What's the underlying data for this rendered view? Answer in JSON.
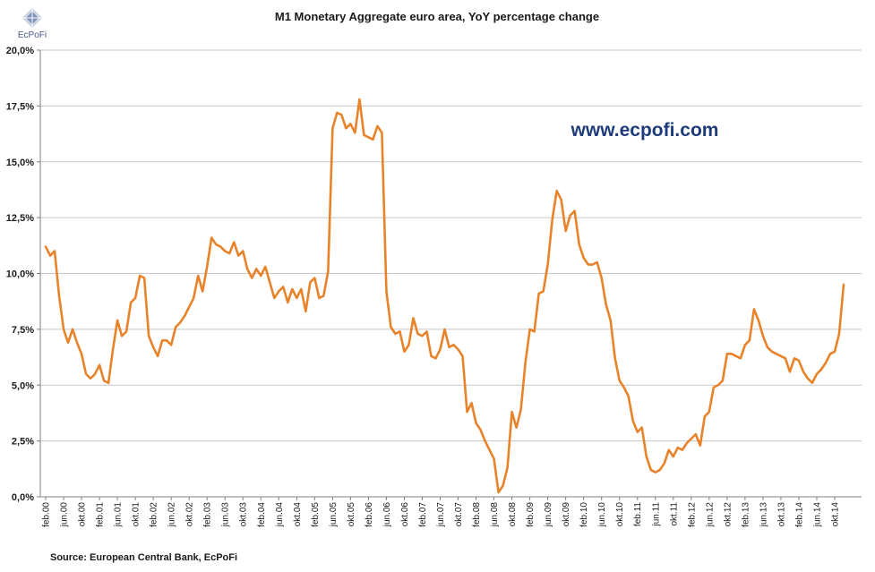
{
  "brand": {
    "name": "EcPoFi",
    "color": "#3b5b9b"
  },
  "website": {
    "text": "www.ecpofi.com",
    "color": "#1f3c7a"
  },
  "source": "Source: European Central Bank, EcPoFi",
  "chart_data": {
    "type": "line",
    "title": "M1 Monetary Aggregate euro area, YoY percentage change",
    "xlabel": "",
    "ylabel": "",
    "ylim": [
      0,
      20
    ],
    "y_ticks": [
      "0,0%",
      "2,5%",
      "5,0%",
      "7,5%",
      "10,0%",
      "12,5%",
      "15,0%",
      "17,5%",
      "20,0%"
    ],
    "y_tick_values": [
      0,
      2.5,
      5,
      7.5,
      10,
      12.5,
      15,
      17.5,
      20
    ],
    "x_ticks": [
      "feb.00",
      "jun.00",
      "okt.00",
      "feb.01",
      "jun.01",
      "okt.01",
      "feb.02",
      "jun.02",
      "okt.02",
      "feb.03",
      "jun.03",
      "okt.03",
      "feb.04",
      "jun.04",
      "okt.04",
      "feb.05",
      "jun.05",
      "okt.05",
      "feb.06",
      "jun.06",
      "okt.06",
      "feb.07",
      "jun.07",
      "okt.07",
      "feb.08",
      "jun.08",
      "okt.08",
      "feb.09",
      "jun.09",
      "okt.09",
      "feb.10",
      "jun.10",
      "okt.10",
      "feb.11",
      "jun.11",
      "okt.11",
      "feb.12",
      "jun.12",
      "okt.12",
      "feb.13",
      "jun.13",
      "okt.13",
      "feb.14",
      "jun.14",
      "okt.14"
    ],
    "grid": "horizontal",
    "legend": "none",
    "series": [
      {
        "color": "#e8832a",
        "start": "feb.00",
        "frequency": "monthly",
        "values": [
          11.2,
          10.8,
          11.0,
          9.0,
          7.5,
          6.9,
          7.5,
          6.9,
          6.4,
          5.5,
          5.3,
          5.5,
          5.9,
          5.2,
          5.1,
          6.6,
          7.9,
          7.2,
          7.4,
          8.7,
          8.9,
          9.9,
          9.8,
          7.2,
          6.7,
          6.3,
          7.0,
          7.0,
          6.8,
          7.6,
          7.8,
          8.1,
          8.5,
          8.9,
          9.9,
          9.2,
          10.3,
          11.6,
          11.3,
          11.2,
          11.0,
          10.9,
          11.4,
          10.8,
          11.0,
          10.2,
          9.8,
          10.2,
          9.9,
          10.3,
          9.6,
          8.9,
          9.2,
          9.4,
          8.7,
          9.3,
          8.9,
          9.3,
          8.3,
          9.6,
          9.8,
          8.9,
          9.0,
          10.1,
          16.5,
          17.2,
          17.1,
          16.5,
          16.7,
          16.3,
          17.8,
          16.2,
          16.1,
          16.0,
          16.6,
          16.3,
          9.2,
          7.6,
          7.3,
          7.4,
          6.5,
          6.8,
          8.0,
          7.3,
          7.2,
          7.4,
          6.3,
          6.2,
          6.6,
          7.5,
          6.7,
          6.8,
          6.6,
          6.3,
          3.8,
          4.2,
          3.3,
          3.0,
          2.5,
          2.1,
          1.7,
          0.2,
          0.5,
          1.3,
          3.8,
          3.1,
          3.9,
          6.0,
          7.5,
          7.4,
          9.1,
          9.2,
          10.4,
          12.4,
          13.7,
          13.3,
          11.9,
          12.6,
          12.8,
          11.3,
          10.7,
          10.4,
          10.4,
          10.5,
          9.8,
          8.6,
          7.9,
          6.2,
          5.2,
          4.9,
          4.5,
          3.4,
          2.9,
          3.1,
          1.8,
          1.2,
          1.1,
          1.2,
          1.5,
          2.1,
          1.8,
          2.2,
          2.1,
          2.4,
          2.6,
          2.8,
          2.3,
          3.6,
          3.8,
          4.9,
          5.0,
          5.2,
          6.4,
          6.4,
          6.3,
          6.2,
          6.8,
          7.0,
          8.4,
          7.9,
          7.2,
          6.7,
          6.5,
          6.4,
          6.3,
          6.2,
          5.6,
          6.2,
          6.1,
          5.6,
          5.3,
          5.1,
          5.5,
          5.7,
          6.0,
          6.4,
          6.5,
          7.3,
          9.5
        ]
      }
    ]
  }
}
